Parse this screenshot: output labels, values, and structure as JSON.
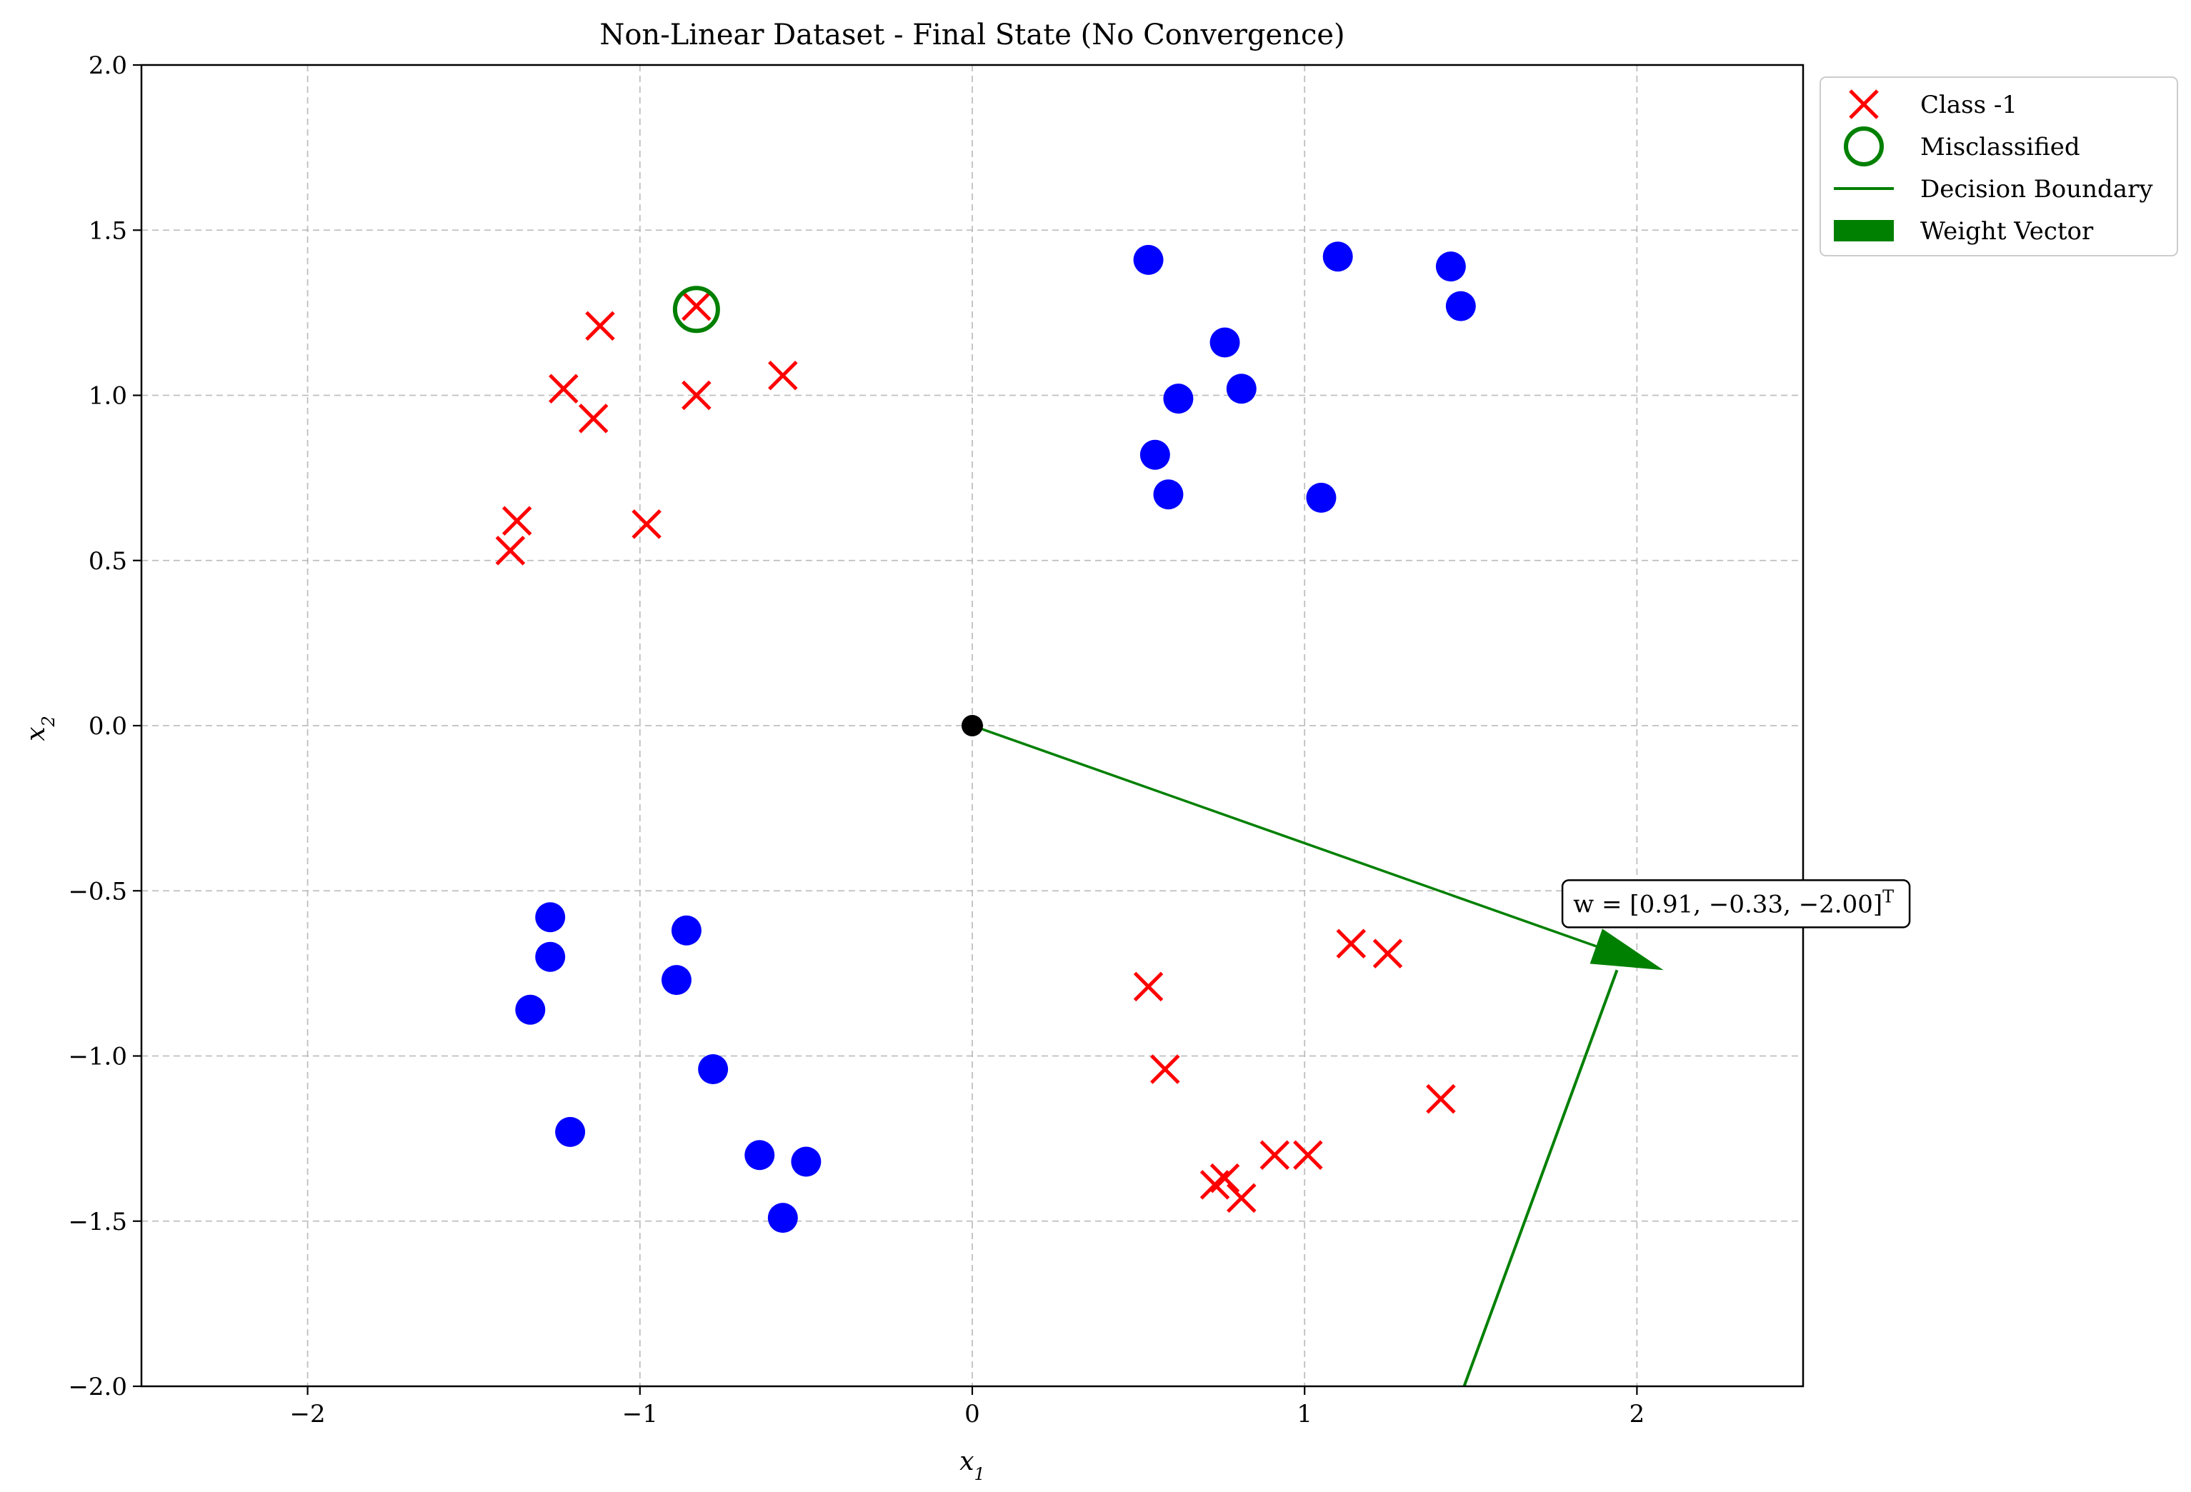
{
  "chart_data": {
    "type": "scatter",
    "title": "Non-Linear Dataset - Final State (No Convergence)",
    "xlabel": "x",
    "xlabel_sub": "1",
    "ylabel": "x",
    "ylabel_sub": "2",
    "xlim": [
      -2.5,
      2.5
    ],
    "ylim": [
      -2.0,
      2.0
    ],
    "xticks": [
      -2,
      -1,
      0,
      1,
      2
    ],
    "xtick_labels": [
      "−2",
      "−1",
      "0",
      "1",
      "2"
    ],
    "yticks": [
      -2.0,
      -1.5,
      -1.0,
      -0.5,
      0.0,
      0.5,
      1.0,
      1.5,
      2.0
    ],
    "ytick_labels": [
      "−2.0",
      "−1.5",
      "−1.0",
      "−0.5",
      "0.0",
      "0.5",
      "1.0",
      "1.5",
      "2.0"
    ],
    "grid": true,
    "legend_position": "outside-top-right",
    "legend": [
      {
        "label": "Class -1",
        "marker": "x",
        "color": "#ff0000"
      },
      {
        "label": "Misclassified",
        "marker": "circle-open",
        "color": "#008000"
      },
      {
        "label": "Decision Boundary",
        "marker": "line",
        "color": "#008000"
      },
      {
        "label": "Weight Vector",
        "marker": "rect",
        "color": "#008000"
      }
    ],
    "series": [
      {
        "marker": "x",
        "color": "#ff0000",
        "points": [
          [
            -0.83,
            1.27
          ],
          [
            -1.12,
            1.21
          ],
          [
            -1.23,
            1.02
          ],
          [
            -1.14,
            0.93
          ],
          [
            -0.83,
            1.0
          ],
          [
            -0.57,
            1.06
          ],
          [
            -1.37,
            0.62
          ],
          [
            -1.39,
            0.53
          ],
          [
            -0.98,
            0.61
          ],
          [
            0.53,
            -0.79
          ],
          [
            0.58,
            -1.04
          ],
          [
            1.14,
            -0.66
          ],
          [
            1.25,
            -0.69
          ],
          [
            1.41,
            -1.13
          ],
          [
            0.91,
            -1.3
          ],
          [
            1.01,
            -1.3
          ],
          [
            0.73,
            -1.39
          ],
          [
            0.76,
            -1.37
          ],
          [
            0.81,
            -1.43
          ]
        ]
      },
      {
        "marker": "circle",
        "color": "#0000ff",
        "points": [
          [
            0.53,
            1.41
          ],
          [
            1.1,
            1.42
          ],
          [
            1.44,
            1.39
          ],
          [
            1.47,
            1.27
          ],
          [
            0.76,
            1.16
          ],
          [
            0.62,
            0.99
          ],
          [
            0.81,
            1.02
          ],
          [
            0.55,
            0.82
          ],
          [
            0.59,
            0.7
          ],
          [
            1.05,
            0.69
          ],
          [
            -1.27,
            -0.58
          ],
          [
            -1.27,
            -0.7
          ],
          [
            -1.33,
            -0.86
          ],
          [
            -0.86,
            -0.62
          ],
          [
            -0.89,
            -0.77
          ],
          [
            -0.78,
            -1.04
          ],
          [
            -1.21,
            -1.23
          ],
          [
            -0.64,
            -1.3
          ],
          [
            -0.5,
            -1.32
          ],
          [
            -0.57,
            -1.49
          ]
        ]
      }
    ],
    "misclassified": [
      [
        -0.83,
        1.26
      ]
    ],
    "origin_point": [
      0,
      0
    ],
    "weight_vector": {
      "from": [
        0,
        0
      ],
      "to": [
        2.08,
        -0.74
      ],
      "color": "#008000"
    },
    "decision_boundary": {
      "from": [
        1.48,
        -2.0
      ],
      "to": [
        1.94,
        -0.74
      ],
      "color": "#008000"
    },
    "annotation": {
      "text": "w = [0.91, −0.33, −2.00]",
      "superscript": "T",
      "anchor": [
        1.98,
        -0.55
      ]
    }
  }
}
